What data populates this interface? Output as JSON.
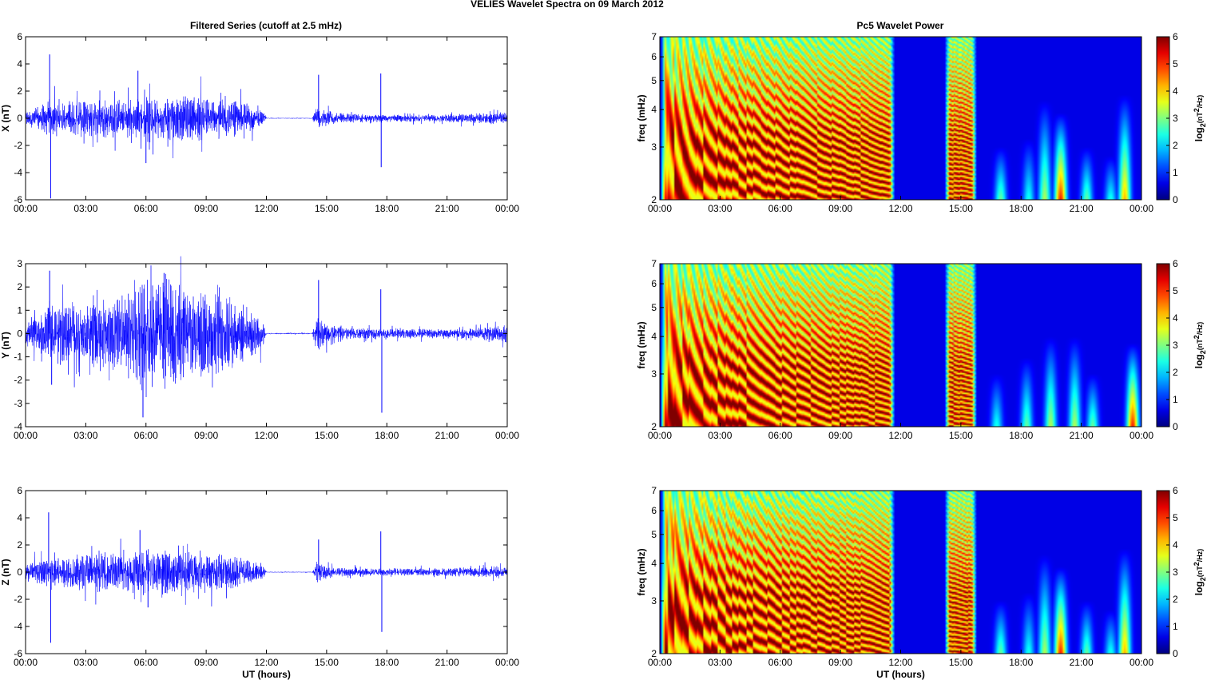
{
  "figure": {
    "suptitle": "VELIES Wavelet Spectra on 09 March     2012",
    "left_title": "Filtered Series (cutoff at 2.5 mHz)",
    "right_title": "Pc5 Wavelet Power",
    "xlabel": "UT (hours)"
  },
  "colors": {
    "trace": "#0000ff",
    "background": "#ffffff",
    "axis": "#000000"
  },
  "chart_data": [
    {
      "type": "line",
      "title": "Filtered Series (cutoff at 2.5 mHz)",
      "ylabel": "X (nT)",
      "xlabel": "",
      "xlim": [
        0,
        24
      ],
      "ylim": [
        -6,
        6
      ],
      "xticks": [
        0,
        3,
        6,
        9,
        12,
        15,
        18,
        21,
        24
      ],
      "xticklabels": [
        "00:00",
        "03:00",
        "06:00",
        "09:00",
        "12:00",
        "15:00",
        "18:00",
        "21:00",
        "00:00"
      ],
      "yticks": [
        -6,
        -4,
        -2,
        0,
        2,
        4,
        6
      ],
      "grid": false,
      "envelope": {
        "x": [
          0,
          1,
          2,
          3,
          4,
          5,
          6,
          7,
          8,
          9,
          10,
          11,
          11.9,
          12,
          14.3,
          14.5,
          15,
          16,
          18,
          20,
          22,
          24
        ],
        "amp": [
          0.4,
          0.9,
          0.9,
          1.1,
          1.0,
          1.0,
          1.3,
          1.3,
          1.2,
          1.2,
          1.1,
          0.8,
          0.3,
          0.02,
          0.02,
          0.6,
          0.4,
          0.25,
          0.2,
          0.2,
          0.25,
          0.35
        ]
      },
      "spikes": [
        {
          "x": 1.2,
          "y": 4.7
        },
        {
          "x": 1.25,
          "y": -5.9
        },
        {
          "x": 5.6,
          "y": 3.5
        },
        {
          "x": 6.0,
          "y": -3.3
        },
        {
          "x": 14.6,
          "y": 3.2
        },
        {
          "x": 17.7,
          "y": 3.3
        },
        {
          "x": 17.72,
          "y": -3.6
        }
      ]
    },
    {
      "type": "line",
      "title": "",
      "ylabel": "Y (nT)",
      "xlabel": "",
      "xlim": [
        0,
        24
      ],
      "ylim": [
        -4,
        3
      ],
      "xticks": [
        0,
        3,
        6,
        9,
        12,
        15,
        18,
        21,
        24
      ],
      "xticklabels": [
        "00:00",
        "03:00",
        "06:00",
        "09:00",
        "12:00",
        "15:00",
        "18:00",
        "21:00",
        "00:00"
      ],
      "yticks": [
        -4,
        -3,
        -2,
        -1,
        0,
        1,
        2,
        3
      ],
      "grid": false,
      "envelope": {
        "x": [
          0,
          1,
          2,
          3,
          4,
          5,
          6,
          7,
          8,
          9,
          10,
          11,
          11.9,
          12,
          14.3,
          14.5,
          15,
          16,
          18,
          20,
          22,
          24
        ],
        "amp": [
          0.3,
          0.8,
          0.9,
          1.0,
          1.1,
          1.4,
          1.7,
          1.8,
          1.5,
          1.3,
          1.2,
          0.9,
          0.4,
          0.02,
          0.02,
          0.6,
          0.4,
          0.2,
          0.15,
          0.15,
          0.15,
          0.3
        ]
      },
      "spikes": [
        {
          "x": 1.2,
          "y": 2.7
        },
        {
          "x": 1.3,
          "y": -2.2
        },
        {
          "x": 5.85,
          "y": -3.6
        },
        {
          "x": 6.9,
          "y": 2.6
        },
        {
          "x": 14.6,
          "y": 2.3
        },
        {
          "x": 17.7,
          "y": 1.9
        },
        {
          "x": 17.75,
          "y": -3.4
        }
      ]
    },
    {
      "type": "line",
      "title": "",
      "ylabel": "Z (nT)",
      "xlabel": "UT (hours)",
      "xlim": [
        0,
        24
      ],
      "ylim": [
        -6,
        6
      ],
      "xticks": [
        0,
        3,
        6,
        9,
        12,
        15,
        18,
        21,
        24
      ],
      "xticklabels": [
        "00:00",
        "03:00",
        "06:00",
        "09:00",
        "12:00",
        "15:00",
        "18:00",
        "21:00",
        "00:00"
      ],
      "yticks": [
        -6,
        -4,
        -2,
        0,
        2,
        4,
        6
      ],
      "grid": false,
      "envelope": {
        "x": [
          0,
          1,
          2,
          3,
          4,
          5,
          6,
          7,
          8,
          9,
          10,
          11,
          11.9,
          12,
          14.3,
          14.5,
          15,
          16,
          18,
          20,
          22,
          24
        ],
        "amp": [
          0.4,
          0.9,
          0.9,
          1.0,
          1.0,
          1.0,
          1.3,
          1.2,
          1.1,
          1.1,
          1.0,
          0.7,
          0.3,
          0.02,
          0.02,
          0.6,
          0.35,
          0.2,
          0.2,
          0.2,
          0.25,
          0.35
        ]
      },
      "spikes": [
        {
          "x": 1.15,
          "y": 4.4
        },
        {
          "x": 1.25,
          "y": -5.2
        },
        {
          "x": 5.7,
          "y": 3.1
        },
        {
          "x": 6.1,
          "y": -2.6
        },
        {
          "x": 14.6,
          "y": 2.4
        },
        {
          "x": 17.7,
          "y": 3.0
        },
        {
          "x": 17.75,
          "y": -4.4
        }
      ]
    },
    {
      "type": "heatmap",
      "title": "Pc5 Wavelet Power",
      "ylabel": "freq (mHz)",
      "xlabel": "",
      "xlim": [
        0,
        24
      ],
      "ylim": [
        2,
        7
      ],
      "yscale": "log",
      "xticks": [
        0,
        3,
        6,
        9,
        12,
        15,
        18,
        21,
        24
      ],
      "xticklabels": [
        "00:00",
        "03:00",
        "06:00",
        "09:00",
        "12:00",
        "15:00",
        "18:00",
        "21:00",
        "00:00"
      ],
      "yticks": [
        2,
        3,
        4,
        5,
        6,
        7
      ],
      "colorbar": {
        "label": "log2(nT2/Hz)",
        "range": [
          0,
          6
        ],
        "ticks": [
          0,
          1,
          2,
          3,
          4,
          5,
          6
        ]
      },
      "active_intervals": [
        {
          "start": 0.0,
          "end": 11.7,
          "level": 6
        },
        {
          "start": 14.2,
          "end": 15.8,
          "level": 6
        }
      ],
      "bursts": [
        {
          "x": 17.0,
          "fmax": 3.0,
          "level": 2.5
        },
        {
          "x": 18.4,
          "fmax": 3.2,
          "level": 2.0
        },
        {
          "x": 19.2,
          "fmax": 4.3,
          "level": 3.0
        },
        {
          "x": 20.0,
          "fmax": 3.9,
          "level": 5.0
        },
        {
          "x": 21.3,
          "fmax": 3.0,
          "level": 2.5
        },
        {
          "x": 22.5,
          "fmax": 2.8,
          "level": 2.0
        },
        {
          "x": 23.2,
          "fmax": 4.5,
          "level": 4.0
        }
      ]
    },
    {
      "type": "heatmap",
      "title": "",
      "ylabel": "freq (mHz)",
      "xlabel": "",
      "xlim": [
        0,
        24
      ],
      "ylim": [
        2,
        7
      ],
      "yscale": "log",
      "xticks": [
        0,
        3,
        6,
        9,
        12,
        15,
        18,
        21,
        24
      ],
      "xticklabels": [
        "00:00",
        "03:00",
        "06:00",
        "09:00",
        "12:00",
        "15:00",
        "18:00",
        "21:00",
        "00:00"
      ],
      "yticks": [
        2,
        3,
        4,
        5,
        6,
        7
      ],
      "colorbar": {
        "label": "log2(nT2/Hz)",
        "range": [
          0,
          6
        ],
        "ticks": [
          0,
          1,
          2,
          3,
          4,
          5,
          6
        ]
      },
      "active_intervals": [
        {
          "start": 0.0,
          "end": 11.7,
          "level": 6
        },
        {
          "start": 14.2,
          "end": 15.8,
          "level": 6
        }
      ],
      "bursts": [
        {
          "x": 16.8,
          "fmax": 3.0,
          "level": 2.0
        },
        {
          "x": 18.3,
          "fmax": 3.4,
          "level": 2.5
        },
        {
          "x": 19.5,
          "fmax": 4.0,
          "level": 3.0
        },
        {
          "x": 20.7,
          "fmax": 4.0,
          "level": 3.0
        },
        {
          "x": 21.6,
          "fmax": 3.0,
          "level": 2.5
        },
        {
          "x": 23.6,
          "fmax": 3.8,
          "level": 5.0
        }
      ]
    },
    {
      "type": "heatmap",
      "title": "",
      "ylabel": "freq (mHz)",
      "xlabel": "UT (hours)",
      "xlim": [
        0,
        24
      ],
      "ylim": [
        2,
        7
      ],
      "yscale": "log",
      "xticks": [
        0,
        3,
        6,
        9,
        12,
        15,
        18,
        21,
        24
      ],
      "xticklabels": [
        "00:00",
        "03:00",
        "06:00",
        "09:00",
        "12:00",
        "15:00",
        "18:00",
        "21:00",
        "00:00"
      ],
      "yticks": [
        2,
        3,
        4,
        5,
        6,
        7
      ],
      "colorbar": {
        "label": "log2(nT2/Hz)",
        "range": [
          0,
          6
        ],
        "ticks": [
          0,
          1,
          2,
          3,
          4,
          5,
          6
        ]
      },
      "active_intervals": [
        {
          "start": 0.0,
          "end": 11.7,
          "level": 6
        },
        {
          "start": 14.2,
          "end": 15.8,
          "level": 6
        }
      ],
      "bursts": [
        {
          "x": 17.0,
          "fmax": 3.0,
          "level": 2.5
        },
        {
          "x": 18.4,
          "fmax": 3.2,
          "level": 2.0
        },
        {
          "x": 19.2,
          "fmax": 4.3,
          "level": 3.0
        },
        {
          "x": 20.0,
          "fmax": 3.9,
          "level": 5.0
        },
        {
          "x": 21.3,
          "fmax": 3.0,
          "level": 2.5
        },
        {
          "x": 22.5,
          "fmax": 2.8,
          "level": 2.0
        },
        {
          "x": 23.2,
          "fmax": 4.5,
          "level": 4.0
        }
      ]
    }
  ]
}
